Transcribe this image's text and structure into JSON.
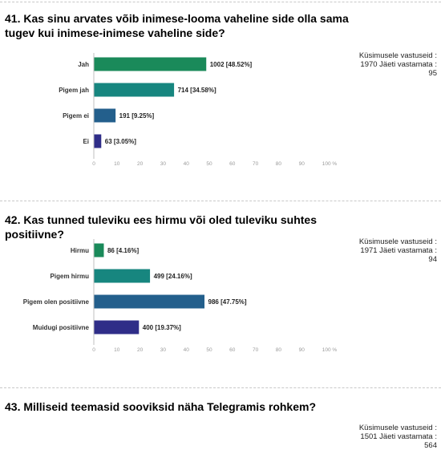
{
  "questions": [
    {
      "title": "41. Kas sinu arvates võib inimese-looma vaheline side olla sama tugev kui inimese-inimese vaheline side?",
      "stats": "Küsimusele vastuseid : 1970 Jäeti vastamata : 95"
    },
    {
      "title": "42. Kas tunned tuleviku ees hirmu või oled tuleviku suhtes positiivne?",
      "stats": "Küsimusele vastuseid : 1971 Jäeti vastamata : 94"
    },
    {
      "title": "43. Milliseid teemasid sooviksid näha Telegramis rohkem?",
      "stats": "Küsimusele vastuseid : 1501 Jäeti vastamata : 564"
    }
  ],
  "chart_data": [
    {
      "type": "bar",
      "orientation": "horizontal",
      "categories": [
        "Jah",
        "Pigem jah",
        "Pigem ei",
        "Ei"
      ],
      "values": [
        48.52,
        34.58,
        9.25,
        3.05
      ],
      "data_labels": [
        "1002 [48.52%]",
        "714 [34.58%]",
        "191 [9.25%]",
        "63 [3.05%]"
      ],
      "colors": [
        "#1a8a5a",
        "#17867f",
        "#235f8c",
        "#2f2d88"
      ],
      "xlim": [
        0,
        100
      ],
      "xticks": [
        "0",
        "10",
        "20",
        "30",
        "40",
        "50",
        "60",
        "70",
        "80",
        "90",
        "100 %"
      ]
    },
    {
      "type": "bar",
      "orientation": "horizontal",
      "categories": [
        "Hirmu",
        "Pigem hirmu",
        "Pigem olen positiivne",
        "Muidugi positiivne"
      ],
      "values": [
        4.16,
        24.16,
        47.75,
        19.37
      ],
      "data_labels": [
        "86 [4.16%]",
        "499 [24.16%]",
        "986 [47.75%]",
        "400 [19.37%]"
      ],
      "colors": [
        "#1a8a5a",
        "#17867f",
        "#235f8c",
        "#2f2d88"
      ],
      "xlim": [
        0,
        100
      ],
      "xticks": [
        "0",
        "10",
        "20",
        "30",
        "40",
        "50",
        "60",
        "70",
        "80",
        "90",
        "100 %"
      ]
    }
  ]
}
